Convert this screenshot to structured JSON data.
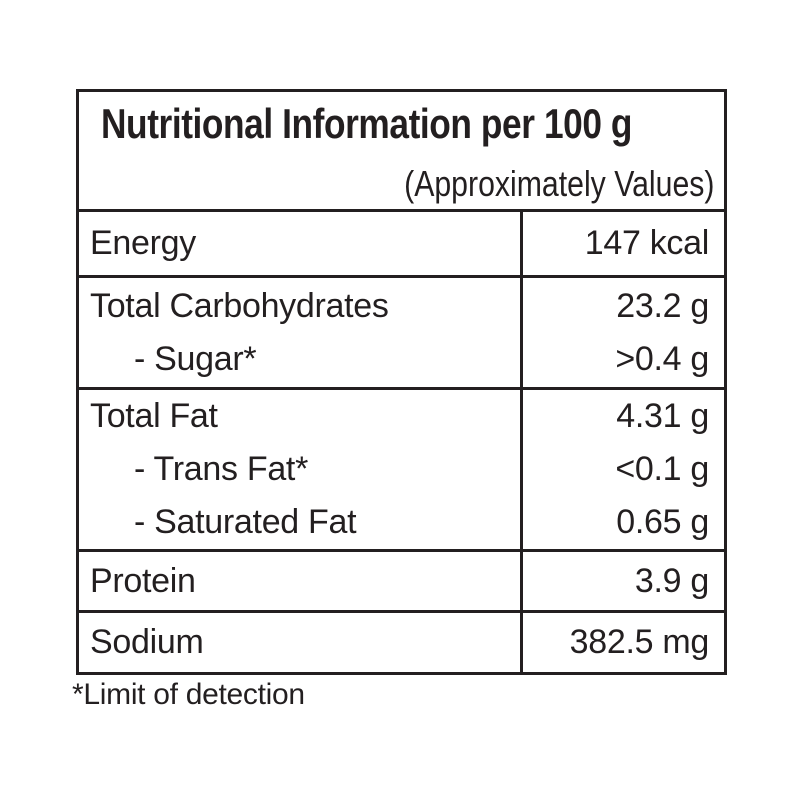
{
  "page": {
    "background_color": "#ffffff",
    "text_color": "#231f20",
    "border_color": "#231f20"
  },
  "table": {
    "title": "Nutritional Information per 100 g",
    "subtitle": "(Approximately Values)",
    "footnote": "*Limit of detection",
    "sections": [
      {
        "lines": [
          {
            "label": "Energy",
            "value": "147 kcal",
            "indent": false
          }
        ]
      },
      {
        "lines": [
          {
            "label": "Total Carbohydrates",
            "value": "23.2 g",
            "indent": false
          },
          {
            "label": "- Sugar*",
            "value": ">0.4 g",
            "indent": true
          }
        ]
      },
      {
        "lines": [
          {
            "label": "Total Fat",
            "value": "4.31 g",
            "indent": false
          },
          {
            "label": "- Trans Fat*",
            "value": "<0.1 g",
            "indent": true
          },
          {
            "label": "- Saturated Fat",
            "value": "0.65 g",
            "indent": true
          }
        ]
      },
      {
        "lines": [
          {
            "label": "Protein",
            "value": "3.9 g",
            "indent": false
          }
        ]
      },
      {
        "lines": [
          {
            "label": "Sodium",
            "value": "382.5 mg",
            "indent": false
          }
        ]
      }
    ]
  }
}
